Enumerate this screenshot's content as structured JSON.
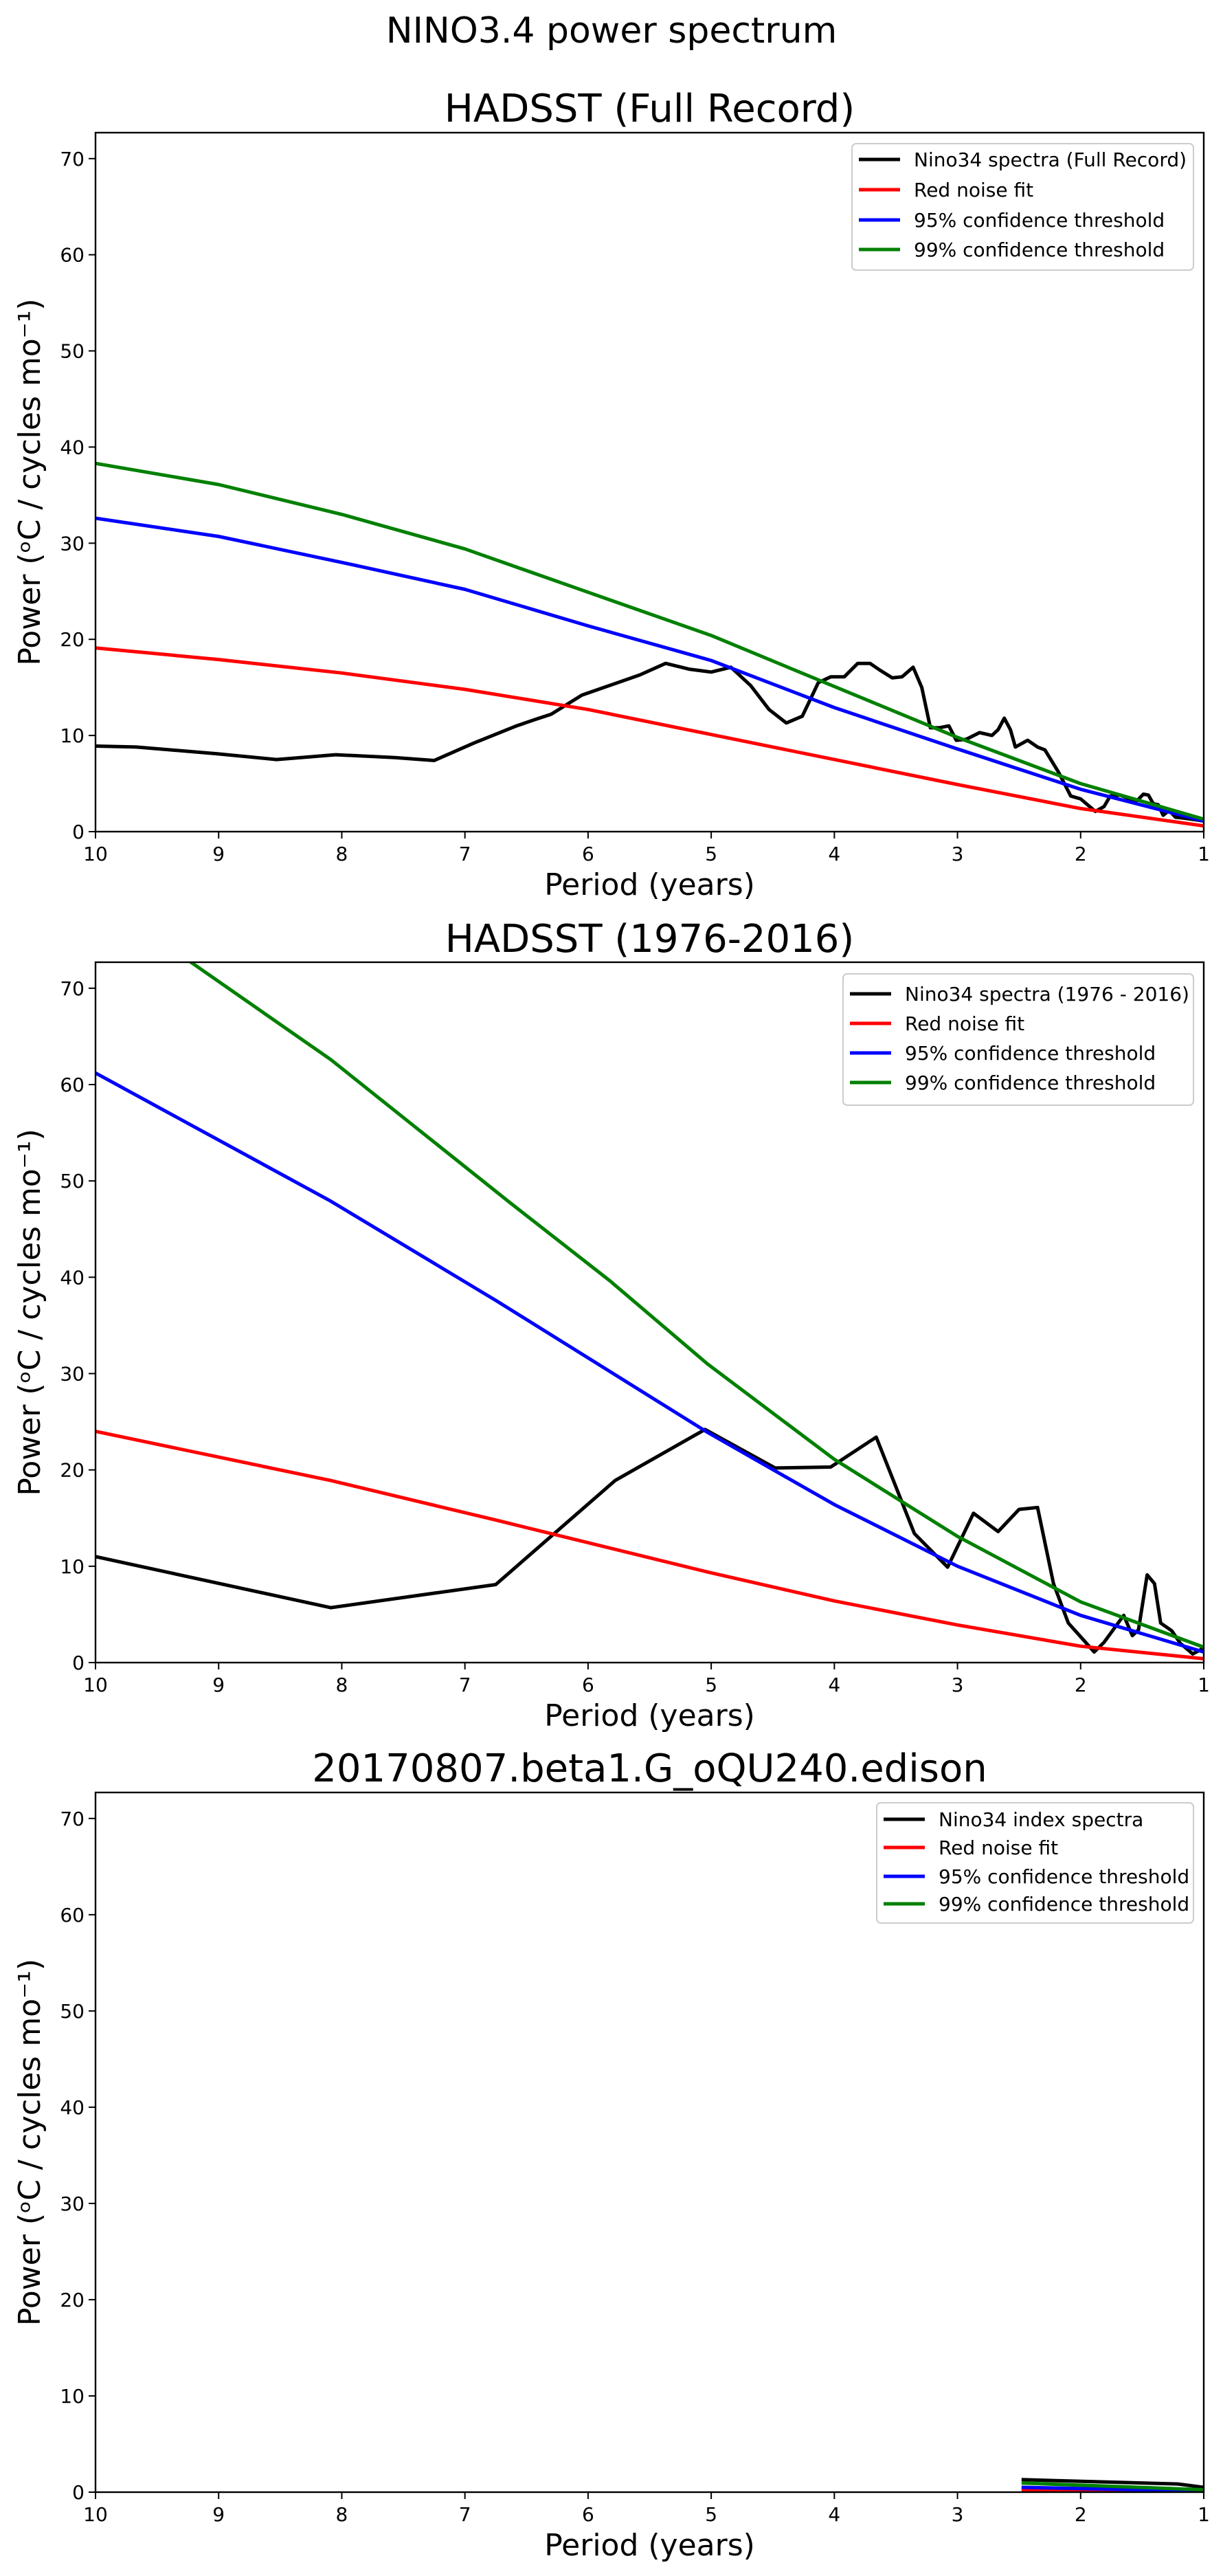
{
  "figure": {
    "suptitle": "NINO3.4 power spectrum"
  },
  "colors": {
    "spectra": "#000000",
    "red_noise": "#ff0000",
    "conf95": "#0000ff",
    "conf99": "#008000",
    "legend_border": "#cccccc"
  },
  "chart_data": [
    {
      "type": "line",
      "title": "HADSST (Full Record)",
      "xlabel": "Period (years)",
      "ylabel": "Power (ᵒC / cycles mo⁻¹)",
      "xlim": [
        10,
        1
      ],
      "ylim": [
        0,
        72.7
      ],
      "xticks": [
        "10",
        "9",
        "8",
        "7",
        "6",
        "5",
        "4",
        "3",
        "2",
        "1"
      ],
      "yticks": [
        "0",
        "10",
        "20",
        "30",
        "40",
        "50",
        "60",
        "70"
      ],
      "grid": false,
      "legend_position": "top-right",
      "series": [
        {
          "name": "Nino34 spectra (Full Record)",
          "key": "spectra",
          "x": [
            10,
            9.67,
            9.01,
            8.53,
            8.05,
            7.57,
            7.25,
            6.93,
            6.58,
            6.42,
            6.3,
            6.05,
            5.58,
            5.37,
            5.18,
            5.0,
            4.84,
            4.68,
            4.53,
            4.39,
            4.26,
            4.13,
            4.03,
            3.92,
            3.81,
            3.71,
            3.63,
            3.53,
            3.45,
            3.36,
            3.29,
            3.22,
            3.15,
            3.07,
            3.01,
            2.93,
            2.82,
            2.72,
            2.67,
            2.62,
            2.57,
            2.53,
            2.43,
            2.35,
            2.29,
            2.18,
            2.08,
            2.0,
            1.88,
            1.81,
            1.76,
            1.68,
            1.6,
            1.55,
            1.49,
            1.45,
            1.41,
            1.37,
            1.33,
            1.28,
            1.23,
            1.16,
            1.05,
            1.0
          ],
          "y": [
            8.9,
            8.8,
            8.1,
            7.5,
            8.0,
            7.7,
            7.4,
            9.2,
            11.0,
            11.7,
            12.2,
            14.2,
            16.3,
            17.5,
            16.9,
            16.6,
            17.1,
            15.2,
            12.7,
            11.3,
            12.0,
            15.5,
            16.1,
            16.1,
            17.5,
            17.5,
            16.8,
            16.0,
            16.1,
            17.1,
            15.0,
            10.8,
            10.8,
            11.0,
            9.5,
            9.6,
            10.3,
            10.0,
            10.6,
            11.8,
            10.6,
            8.8,
            9.5,
            8.8,
            8.5,
            6.2,
            3.7,
            3.4,
            2.1,
            2.6,
            3.7,
            3.8,
            3.4,
            3.1,
            3.9,
            3.8,
            2.9,
            2.8,
            1.7,
            2.2,
            1.5,
            1.4,
            1.2,
            1.1
          ]
        },
        {
          "name": "Red noise fit",
          "key": "red_noise",
          "x": [
            10,
            9,
            8,
            7,
            6,
            5,
            4,
            3,
            2,
            1
          ],
          "y": [
            19.1,
            17.9,
            16.5,
            14.8,
            12.7,
            10.1,
            7.5,
            4.9,
            2.4,
            0.6
          ]
        },
        {
          "name": "95% confidence threshold",
          "key": "conf95",
          "x": [
            10,
            9,
            8,
            7,
            6,
            5,
            4,
            3,
            2,
            1
          ],
          "y": [
            32.6,
            30.7,
            28.0,
            25.2,
            21.4,
            17.8,
            12.9,
            8.6,
            4.4,
            1.1
          ]
        },
        {
          "name": "99% confidence threshold",
          "key": "conf99",
          "x": [
            10,
            9,
            8,
            7,
            6,
            5,
            4,
            3,
            2,
            1
          ],
          "y": [
            38.3,
            36.1,
            33.0,
            29.4,
            24.9,
            20.4,
            15.1,
            9.8,
            5.0,
            1.3
          ]
        }
      ]
    },
    {
      "type": "line",
      "title": "HADSST (1976-2016)",
      "xlabel": "Period (years)",
      "ylabel": "Power (ᵒC / cycles mo⁻¹)",
      "xlim": [
        10,
        1
      ],
      "ylim": [
        0,
        72.7
      ],
      "xticks": [
        "10",
        "9",
        "8",
        "7",
        "6",
        "5",
        "4",
        "3",
        "2",
        "1"
      ],
      "yticks": [
        "0",
        "10",
        "20",
        "30",
        "40",
        "50",
        "60",
        "70"
      ],
      "grid": false,
      "legend_position": "top-right",
      "series": [
        {
          "name": "Nino34 spectra (1976 - 2016)",
          "key": "spectra",
          "x": [
            10,
            8.09,
            6.75,
            5.78,
            5.05,
            4.48,
            4.03,
            3.66,
            3.35,
            3.08,
            2.87,
            2.67,
            2.5,
            2.35,
            2.22,
            2.1,
            1.98,
            1.89,
            1.81,
            1.65,
            1.58,
            1.53,
            1.46,
            1.4,
            1.35,
            1.26,
            1.19,
            1.09,
            1.03,
            1.0
          ],
          "y": [
            11.0,
            5.7,
            8.1,
            18.9,
            24.2,
            20.2,
            20.3,
            23.4,
            13.4,
            9.9,
            15.5,
            13.6,
            15.9,
            16.1,
            8.2,
            4.1,
            2.4,
            1.1,
            2.1,
            4.9,
            2.8,
            3.4,
            9.1,
            8.2,
            4.1,
            3.3,
            2.0,
            0.9,
            1.3,
            1.6
          ]
        },
        {
          "name": "Red noise fit",
          "key": "red_noise",
          "x": [
            10,
            8.09,
            6.75,
            5.03,
            4,
            3,
            2,
            1
          ],
          "y": [
            24.0,
            18.9,
            14.8,
            9.4,
            6.4,
            3.9,
            1.7,
            0.4
          ]
        },
        {
          "name": "95% confidence threshold",
          "key": "conf95",
          "x": [
            10,
            8.09,
            6.75,
            5.03,
            4,
            3,
            2,
            1
          ],
          "y": [
            61.2,
            47.9,
            37.6,
            23.9,
            16.4,
            10.0,
            4.9,
            1.1
          ]
        },
        {
          "name": "99% confidence threshold",
          "key": "conf99",
          "x": [
            10,
            8.09,
            6.64,
            5.82,
            5.03,
            4,
            3,
            2,
            1
          ],
          "y": [
            79.6,
            62.6,
            47.8,
            39.6,
            31.0,
            21.1,
            13.1,
            6.3,
            1.6
          ]
        }
      ]
    },
    {
      "type": "line",
      "title": "20170807.beta1.G_oQU240.edison",
      "xlabel": "Period (years)",
      "ylabel": "Power (ᵒC / cycles mo⁻¹)",
      "xlim": [
        10,
        1
      ],
      "ylim": [
        0,
        72.7
      ],
      "xticks": [
        "10",
        "9",
        "8",
        "7",
        "6",
        "5",
        "4",
        "3",
        "2",
        "1"
      ],
      "yticks": [
        "0",
        "10",
        "20",
        "30",
        "40",
        "50",
        "60",
        "70"
      ],
      "grid": false,
      "legend_position": "top-right",
      "series": [
        {
          "name": "Nino34 index spectra",
          "key": "spectra",
          "x": [
            2.48,
            1.21,
            1.0
          ],
          "y": [
            1.3,
            0.85,
            0.5
          ]
        },
        {
          "name": "Red noise fit",
          "key": "red_noise",
          "x": [
            2.48,
            1.0
          ],
          "y": [
            0.25,
            0.05
          ]
        },
        {
          "name": "95% confidence threshold",
          "key": "conf95",
          "x": [
            2.48,
            1.0
          ],
          "y": [
            0.5,
            0.1
          ]
        },
        {
          "name": "99% confidence threshold",
          "key": "conf99",
          "x": [
            2.48,
            1.0
          ],
          "y": [
            0.95,
            0.25
          ]
        }
      ]
    }
  ]
}
